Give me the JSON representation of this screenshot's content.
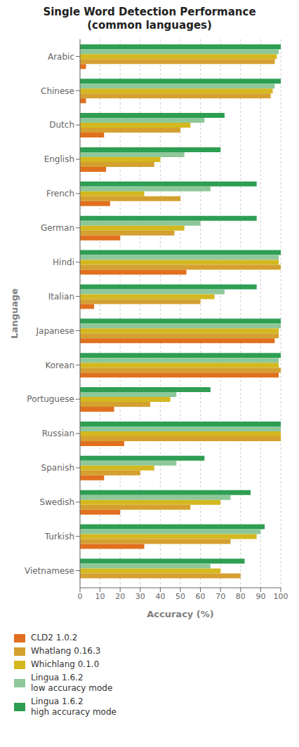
{
  "chart_data": {
    "type": "bar",
    "orientation": "horizontal",
    "title": "Single Word Detection Performance\n(common languages)",
    "xlabel": "Accuracy (%)",
    "ylabel": "Language",
    "categories": [
      "Vietnamese",
      "Turkish",
      "Swedish",
      "Spanish",
      "Russian",
      "Portuguese",
      "Korean",
      "Japanese",
      "Italian",
      "Hindi",
      "German",
      "French",
      "English",
      "Dutch",
      "Chinese",
      "Arabic"
    ],
    "series": [
      {
        "name": "CLD2 1.0.2",
        "color": "#e0701e",
        "values": [
          0,
          32,
          20,
          12,
          22,
          17,
          99,
          97,
          7,
          53,
          20,
          15,
          13,
          12,
          3,
          3
        ]
      },
      {
        "name": "Whatlang 0.16.3",
        "color": "#d4a030",
        "values": [
          80,
          75,
          55,
          30,
          100,
          35,
          100,
          99,
          60,
          100,
          47,
          50,
          37,
          50,
          95,
          97
        ]
      },
      {
        "name": "Whichlang 0.1.0",
        "color": "#d4b820",
        "values": [
          70,
          88,
          70,
          37,
          100,
          45,
          99,
          99,
          67,
          99,
          52,
          32,
          40,
          55,
          96,
          98
        ]
      },
      {
        "name": "Lingua 1.6.2\nlow accuracy mode",
        "color": "#8ec89a",
        "values": [
          65,
          90,
          75,
          48,
          100,
          48,
          99,
          100,
          72,
          99,
          60,
          65,
          52,
          62,
          97,
          99
        ]
      },
      {
        "name": "Lingua 1.6.2\nhigh accuracy mode",
        "color": "#2e9e52",
        "values": [
          82,
          92,
          85,
          62,
          100,
          65,
          100,
          100,
          88,
          100,
          88,
          88,
          70,
          72,
          100,
          100
        ]
      }
    ],
    "xlim": [
      0,
      100
    ],
    "xticks": [
      0,
      10,
      20,
      30,
      40,
      50,
      60,
      70,
      80,
      90,
      100
    ],
    "grid": true,
    "legend": "bottom"
  }
}
